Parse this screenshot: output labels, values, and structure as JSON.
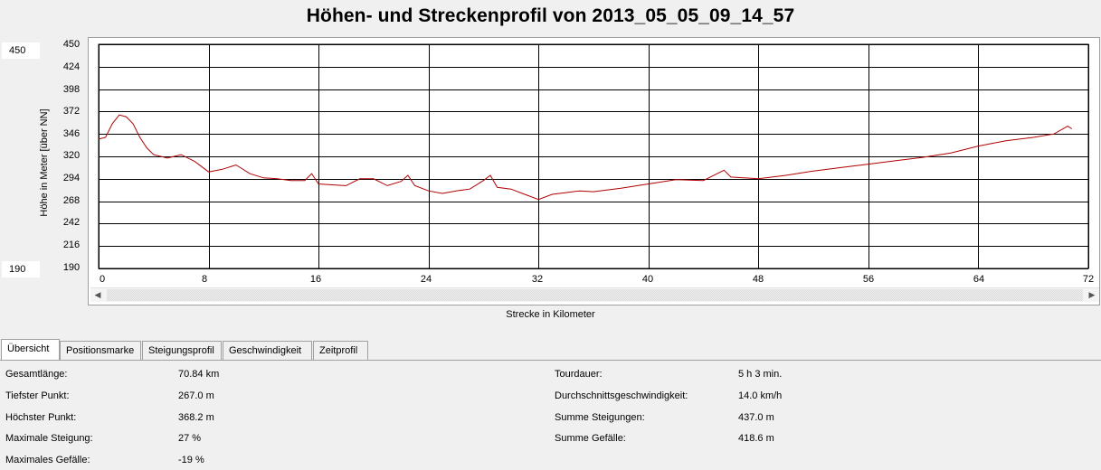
{
  "title": "Höhen- und Streckenprofil von 2013_05_05_09_14_57",
  "y_max_box": "450",
  "y_min_box": "190",
  "colors": {
    "profile_line": "#b00000",
    "grid": "#000000",
    "background": "#ffffff"
  },
  "chart_data": {
    "type": "line",
    "xlabel": "Strecke in Kilometer",
    "ylabel": "Höhe in Meter [über NN]",
    "xlim": [
      0,
      72
    ],
    "ylim": [
      190,
      450
    ],
    "x_ticks": [
      "0",
      "8",
      "16",
      "24",
      "32",
      "40",
      "48",
      "56",
      "64",
      "72"
    ],
    "y_ticks": [
      "450",
      "424",
      "398",
      "372",
      "346",
      "320",
      "294",
      "268",
      "242",
      "216",
      "190"
    ],
    "grid": true,
    "series": [
      {
        "x": [
          0,
          0.5,
          1,
          1.5,
          2,
          2.5,
          3,
          3.5,
          4,
          5,
          6,
          7,
          8,
          9,
          10,
          11,
          12,
          13,
          14,
          15,
          15.5,
          16,
          17,
          18,
          19,
          20,
          21,
          22,
          22.5,
          23,
          24,
          25,
          26,
          27,
          28,
          28.5,
          29,
          30,
          31,
          32,
          33,
          34,
          35,
          36,
          38,
          40,
          42,
          44,
          45.5,
          46,
          48,
          50,
          52,
          54,
          56,
          58,
          60,
          62,
          64,
          66,
          68,
          69.5,
          70.5,
          70.8
        ],
        "y": [
          340,
          342,
          358,
          368,
          366,
          358,
          342,
          330,
          322,
          318,
          322,
          314,
          302,
          305,
          310,
          300,
          295,
          294,
          292,
          292,
          300,
          288,
          287,
          286,
          294,
          294,
          286,
          291,
          298,
          286,
          280,
          277,
          280,
          282,
          292,
          298,
          284,
          282,
          276,
          270,
          276,
          278,
          280,
          279,
          283,
          288,
          293,
          292,
          304,
          296,
          294,
          298,
          303,
          307,
          311,
          315,
          319,
          324,
          332,
          338,
          342,
          346,
          355,
          352
        ]
      }
    ]
  },
  "tabs": [
    "Übersicht",
    "Positionsmarke",
    "Steigungsprofil",
    "Geschwindigkeit",
    "Zeitprofil"
  ],
  "stats_left": [
    {
      "label": "Gesamtlänge:",
      "value": "70.84 km"
    },
    {
      "label": "Tiefster Punkt:",
      "value": "267.0 m"
    },
    {
      "label": "Höchster Punkt:",
      "value": "368.2 m"
    },
    {
      "label": "Maximale Steigung:",
      "value": "27 %"
    },
    {
      "label": "Maximales Gefälle:",
      "value": "-19 %"
    }
  ],
  "stats_right": [
    {
      "label": "Tourdauer:",
      "value": "5 h 3 min."
    },
    {
      "label": "Durchschnittsgeschwindigkeit:",
      "value": "14.0 km/h"
    },
    {
      "label": "Summe Steigungen:",
      "value": "437.0 m"
    },
    {
      "label": "Summe Gefälle:",
      "value": "418.6 m"
    }
  ]
}
